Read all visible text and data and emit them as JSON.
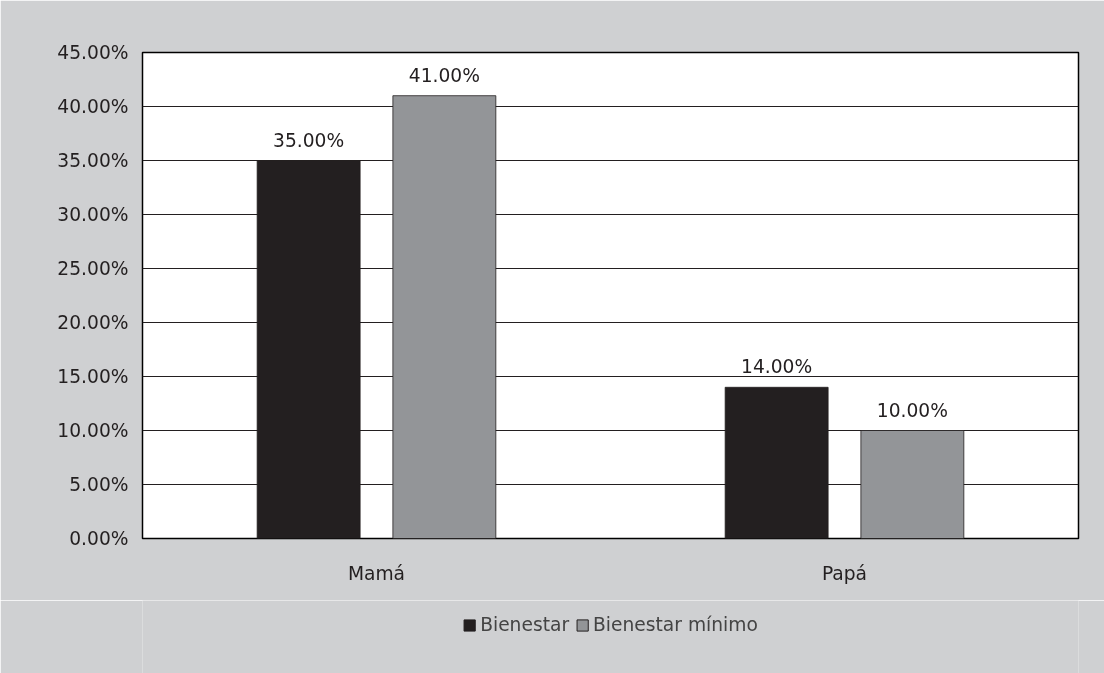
{
  "chart_data": {
    "type": "bar",
    "categories": [
      "Mamá",
      "Papá"
    ],
    "series": [
      {
        "name": "Bienestar",
        "color": "#231f20",
        "values": [
          35,
          14
        ],
        "value_labels": [
          "35.00%",
          "14.00%"
        ]
      },
      {
        "name": "Bienestar mínimo",
        "color": "#939598",
        "values": [
          41,
          10
        ],
        "value_labels": [
          "41.00%",
          "10.00%"
        ]
      }
    ],
    "ylim": [
      0,
      45
    ],
    "yticks": [
      {
        "value": 0,
        "label": "0.00%"
      },
      {
        "value": 5,
        "label": "5.00%"
      },
      {
        "value": 10,
        "label": "10.00%"
      },
      {
        "value": 15,
        "label": "15.00%"
      },
      {
        "value": 20,
        "label": "20.00%"
      },
      {
        "value": 25,
        "label": "25.00%"
      },
      {
        "value": 30,
        "label": "30.00%"
      },
      {
        "value": 35,
        "label": "35.00%"
      },
      {
        "value": 40,
        "label": "40.00%"
      },
      {
        "value": 45,
        "label": "45.00%"
      }
    ],
    "grid": "y",
    "legend": "bottom"
  }
}
